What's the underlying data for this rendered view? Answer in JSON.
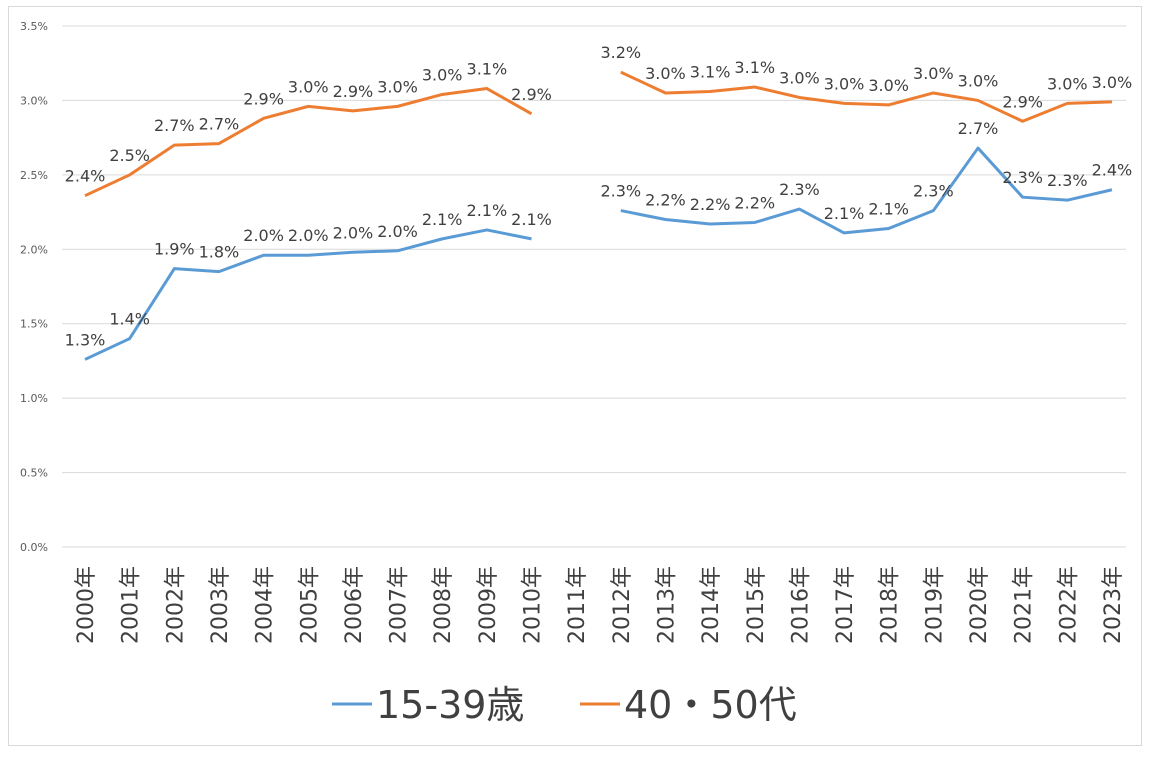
{
  "chart_data": {
    "type": "line",
    "title": "",
    "xlabel": "",
    "ylabel": "",
    "ylim": [
      0,
      0.035
    ],
    "ytick_step": 0.005,
    "yticks": [
      "0.0%",
      "0.5%",
      "1.0%",
      "1.5%",
      "2.0%",
      "2.5%",
      "3.0%",
      "3.5%"
    ],
    "categories": [
      "2000年",
      "2001年",
      "2002年",
      "2003年",
      "2004年",
      "2005年",
      "2006年",
      "2007年",
      "2008年",
      "2009年",
      "2010年",
      "2011年",
      "2012年",
      "2013年",
      "2014年",
      "2015年",
      "2016年",
      "2017年",
      "2018年",
      "2019年",
      "2020年",
      "2021年",
      "2022年",
      "2023年"
    ],
    "legend_position": "bottom",
    "series": [
      {
        "name": "15-39歳",
        "color": "#5b9bd5",
        "values": [
          0.0126,
          0.014,
          0.0187,
          0.0185,
          0.0196,
          0.0196,
          0.0198,
          0.0199,
          0.0207,
          0.0213,
          0.0207,
          null,
          0.0226,
          0.022,
          0.0217,
          0.0218,
          0.0227,
          0.0211,
          0.0214,
          0.0226,
          0.0268,
          0.0235,
          0.0233,
          0.024
        ],
        "labels": [
          "1.3%",
          "1.4%",
          "1.9%",
          "1.8%",
          "2.0%",
          "2.0%",
          "2.0%",
          "2.0%",
          "2.1%",
          "2.1%",
          "2.1%",
          null,
          "2.3%",
          "2.2%",
          "2.2%",
          "2.2%",
          "2.3%",
          "2.1%",
          "2.1%",
          "2.3%",
          "2.7%",
          "2.3%",
          "2.3%",
          "2.4%"
        ]
      },
      {
        "name": "40・50代",
        "color": "#ed7d31",
        "values": [
          0.0236,
          0.025,
          0.027,
          0.0271,
          0.0288,
          0.0296,
          0.0293,
          0.0296,
          0.0304,
          0.0308,
          0.0291,
          null,
          0.0319,
          0.0305,
          0.0306,
          0.0309,
          0.0302,
          0.0298,
          0.0297,
          0.0305,
          0.03,
          0.0286,
          0.0298,
          0.0299
        ],
        "labels": [
          "2.4%",
          "2.5%",
          "2.7%",
          "2.7%",
          "2.9%",
          "3.0%",
          "2.9%",
          "3.0%",
          "3.0%",
          "3.1%",
          "2.9%",
          null,
          "3.2%",
          "3.0%",
          "3.1%",
          "3.1%",
          "3.0%",
          "3.0%",
          "3.0%",
          "3.0%",
          "3.0%",
          "2.9%",
          "3.0%",
          "3.0%"
        ]
      }
    ]
  }
}
